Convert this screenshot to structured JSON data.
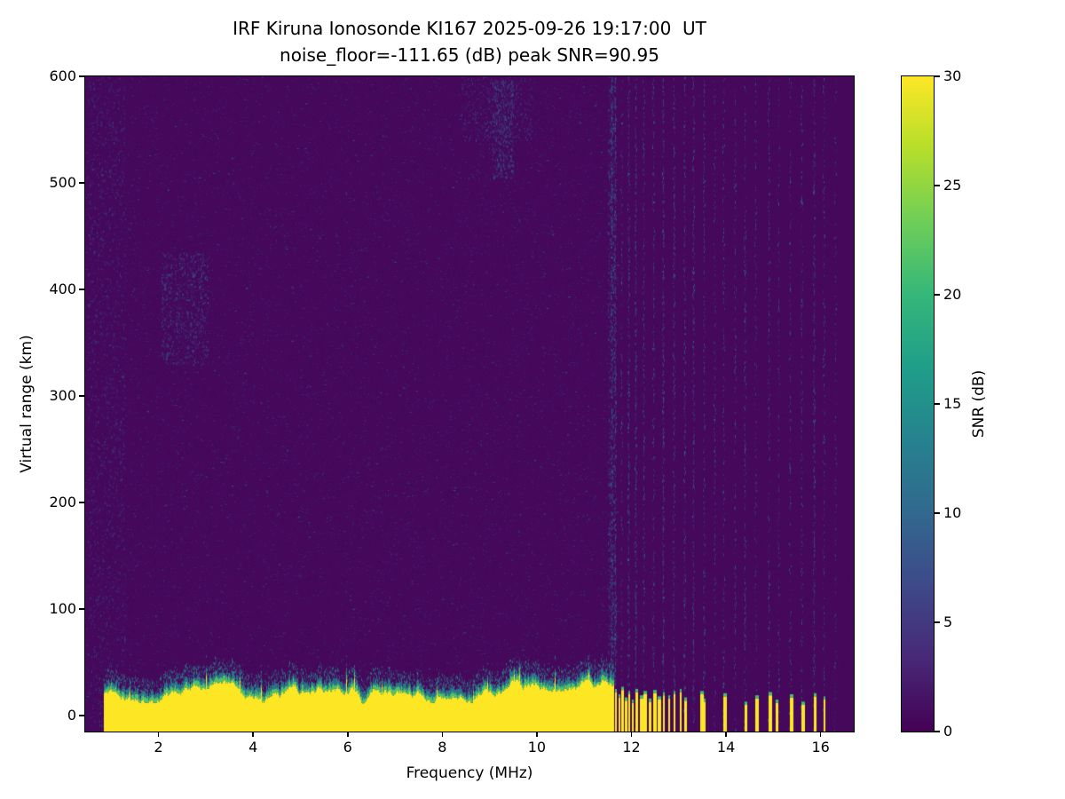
{
  "chart_data": {
    "type": "heatmap",
    "title": "IRF Kiruna Ionosonde KI167 2025-09-26 19:17:00  UT",
    "subtitle": "noise_floor=-111.65 (dB) peak SNR=90.95",
    "xlabel": "Frequency (MHz)",
    "ylabel": "Virtual range (km)",
    "x_range": [
      0.45,
      16.7
    ],
    "y_range": [
      -15,
      600
    ],
    "x_ticks": [
      2,
      4,
      6,
      8,
      10,
      12,
      14,
      16
    ],
    "y_ticks": [
      0,
      100,
      200,
      300,
      400,
      500,
      600
    ],
    "noise_floor_db": -111.65,
    "peak_snr_db": 90.95,
    "colorbar": {
      "label": "SNR (dB)",
      "range": [
        0,
        30
      ],
      "ticks": [
        0,
        5,
        10,
        15,
        20,
        25,
        30
      ]
    },
    "colormap": {
      "name": "viridis",
      "stops": [
        "#440154",
        "#482878",
        "#3e4989",
        "#31688e",
        "#26828e",
        "#1f9e89",
        "#35b779",
        "#6ece58",
        "#b5de2b",
        "#fde725"
      ]
    },
    "ground_clutter_band": {
      "f_start": 0.85,
      "f_end": 11.62,
      "base_km": -15,
      "top_km_mean": 22,
      "top_km_min": 12,
      "top_km_max": 34,
      "dip_freqs": [
        6.33
      ]
    },
    "clutter_stubs": [
      {
        "f": 11.66,
        "h": 22
      },
      {
        "f": 11.72,
        "h": 17
      },
      {
        "f": 11.79,
        "h": 24
      },
      {
        "f": 11.86,
        "h": 14
      },
      {
        "f": 11.93,
        "h": 20
      },
      {
        "f": 12.0,
        "h": 12
      },
      {
        "f": 12.08,
        "h": 22
      },
      {
        "f": 12.17,
        "h": 16
      },
      {
        "f": 12.26,
        "h": 20
      },
      {
        "f": 12.36,
        "h": 13
      },
      {
        "f": 12.46,
        "h": 21
      },
      {
        "f": 12.56,
        "h": 15
      },
      {
        "f": 12.66,
        "h": 19
      },
      {
        "f": 12.77,
        "h": 16
      },
      {
        "f": 12.9,
        "h": 20
      },
      {
        "f": 13.02,
        "h": 22
      },
      {
        "f": 13.12,
        "h": 14
      },
      {
        "f": 13.46,
        "h": 20
      },
      {
        "f": 13.52,
        "h": 13
      },
      {
        "f": 13.95,
        "h": 18
      },
      {
        "f": 14.4,
        "h": 10
      },
      {
        "f": 14.62,
        "h": 16
      },
      {
        "f": 14.9,
        "h": 19
      },
      {
        "f": 15.05,
        "h": 12
      },
      {
        "f": 15.34,
        "h": 17
      },
      {
        "f": 15.6,
        "h": 10
      },
      {
        "f": 15.86,
        "h": 18
      },
      {
        "f": 16.06,
        "h": 15
      }
    ],
    "rfi_stripes": [
      11.57,
      11.66,
      11.79,
      11.93,
      12.08,
      12.26,
      12.46,
      12.66,
      12.9,
      13.12,
      13.3,
      13.52,
      13.75,
      13.95,
      14.18,
      14.4,
      14.62,
      14.9,
      15.1,
      15.34,
      15.6,
      15.86,
      16.06,
      16.3
    ],
    "noise_clusters": [
      {
        "f0": 0.5,
        "f1": 1.3,
        "km0": -10,
        "km1": 600,
        "n": 1500,
        "t0": 0.08,
        "t1": 0.32
      },
      {
        "f0": 2.05,
        "f1": 3.05,
        "km0": 330,
        "km1": 435,
        "n": 650,
        "t0": 0.15,
        "t1": 0.4
      },
      {
        "f0": 9.05,
        "f1": 9.5,
        "km0": 505,
        "km1": 598,
        "n": 450,
        "t0": 0.15,
        "t1": 0.45
      },
      {
        "f0": 8.4,
        "f1": 9.9,
        "km0": 540,
        "km1": 600,
        "n": 350,
        "t0": 0.12,
        "t1": 0.35
      },
      {
        "f0": 11.5,
        "f1": 11.66,
        "km0": 30,
        "km1": 600,
        "n": 800,
        "t0": 0.15,
        "t1": 0.45
      }
    ]
  }
}
